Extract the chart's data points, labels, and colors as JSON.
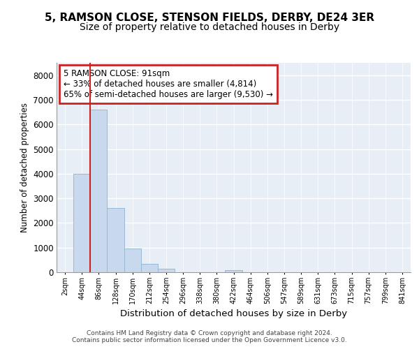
{
  "title1": "5, RAMSON CLOSE, STENSON FIELDS, DERBY, DE24 3ER",
  "title2": "Size of property relative to detached houses in Derby",
  "xlabel": "Distribution of detached houses by size in Derby",
  "ylabel": "Number of detached properties",
  "categories": [
    "2sqm",
    "44sqm",
    "86sqm",
    "128sqm",
    "170sqm",
    "212sqm",
    "254sqm",
    "296sqm",
    "338sqm",
    "380sqm",
    "422sqm",
    "464sqm",
    "506sqm",
    "547sqm",
    "589sqm",
    "631sqm",
    "673sqm",
    "715sqm",
    "757sqm",
    "799sqm",
    "841sqm"
  ],
  "values": [
    0,
    4000,
    6600,
    2600,
    950,
    330,
    130,
    0,
    0,
    0,
    75,
    0,
    0,
    0,
    0,
    0,
    0,
    0,
    0,
    0,
    0
  ],
  "bar_color": "#c8d8ed",
  "bar_edge_color": "#99b8d4",
  "vline_x": 1.5,
  "vline_color": "#cc2222",
  "annotation_box_text": "5 RAMSON CLOSE: 91sqm\n← 33% of detached houses are smaller (4,814)\n65% of semi-detached houses are larger (9,530) →",
  "annotation_box_color": "#cc2222",
  "ylim": [
    0,
    8500
  ],
  "yticks": [
    0,
    1000,
    2000,
    3000,
    4000,
    5000,
    6000,
    7000,
    8000
  ],
  "footer": "Contains HM Land Registry data © Crown copyright and database right 2024.\nContains public sector information licensed under the Open Government Licence v3.0.",
  "bg_color": "#ffffff",
  "plot_bg_color": "#e8eef6",
  "grid_color": "#ffffff",
  "title1_fontsize": 11,
  "title2_fontsize": 10
}
